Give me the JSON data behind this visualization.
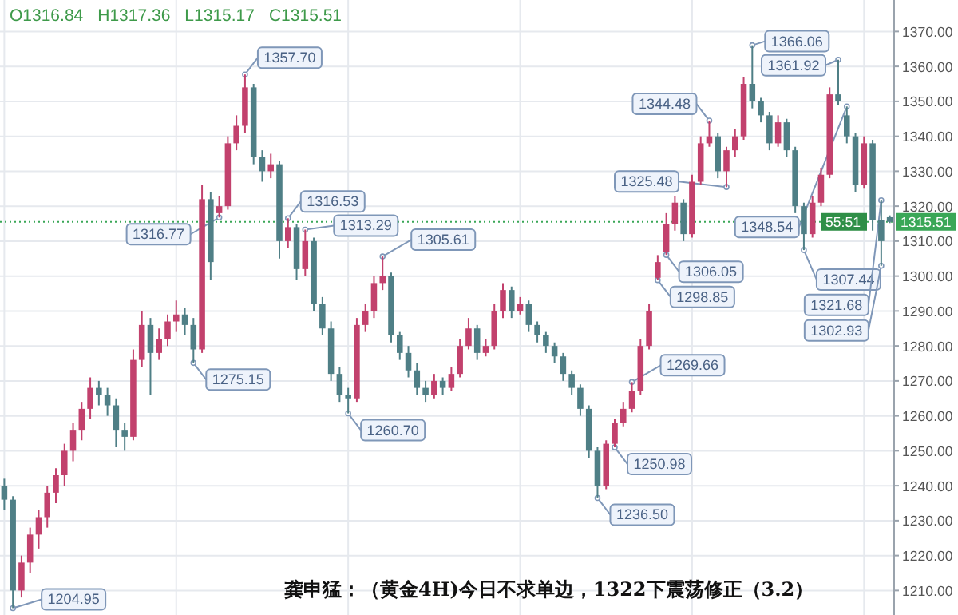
{
  "chart_data": {
    "type": "candlestick",
    "title": "龚申猛：（黄金4H)今日不求单边，1322下震荡修正（3.2）",
    "categories": [
      null,
      null,
      null,
      null,
      null,
      null,
      null,
      null,
      null,
      null,
      null,
      null,
      null,
      null,
      null,
      null,
      null,
      null,
      null,
      null,
      null,
      null,
      null,
      null,
      null,
      null,
      null,
      null,
      null,
      null,
      null,
      null,
      null,
      null,
      null,
      null,
      null,
      null,
      null,
      null,
      null,
      null,
      null,
      null,
      null,
      null,
      null,
      null,
      null,
      null,
      null,
      null,
      null,
      null,
      null,
      null,
      null,
      null,
      null,
      null,
      null,
      null,
      null,
      null,
      null,
      null,
      null,
      null,
      null,
      null,
      null,
      null,
      null,
      null,
      null,
      null,
      null,
      null,
      null,
      null,
      null,
      null,
      null,
      null,
      null,
      null,
      null,
      null,
      null,
      null,
      null,
      null,
      null,
      null,
      null,
      null,
      null,
      null,
      null,
      null,
      null,
      null,
      null,
      null
    ],
    "ohlc": [
      [
        1240,
        1242,
        1233,
        1236
      ],
      [
        1236,
        1237,
        1204.95,
        1210
      ],
      [
        1210,
        1220,
        1208,
        1218
      ],
      [
        1218,
        1228,
        1215,
        1226
      ],
      [
        1226,
        1233,
        1222,
        1231
      ],
      [
        1231,
        1240,
        1228,
        1238
      ],
      [
        1238,
        1245,
        1235,
        1243
      ],
      [
        1243,
        1252,
        1240,
        1250
      ],
      [
        1250,
        1258,
        1247,
        1256
      ],
      [
        1256,
        1264,
        1253,
        1262
      ],
      [
        1262,
        1271,
        1259,
        1268
      ],
      [
        1268,
        1270,
        1263,
        1266
      ],
      [
        1266,
        1268,
        1260,
        1263
      ],
      [
        1263,
        1265,
        1251,
        1256
      ],
      [
        1256,
        1258,
        1250,
        1254
      ],
      [
        1254,
        1279,
        1253,
        1276
      ],
      [
        1276,
        1290,
        1274,
        1286
      ],
      [
        1286,
        1288,
        1266,
        1278
      ],
      [
        1278,
        1285,
        1276,
        1282
      ],
      [
        1282,
        1289,
        1280,
        1287
      ],
      [
        1287,
        1293,
        1284,
        1289
      ],
      [
        1289,
        1291,
        1283,
        1286
      ],
      [
        1286,
        1288,
        1275.15,
        1279
      ],
      [
        1279,
        1326,
        1278,
        1322
      ],
      [
        1322,
        1324,
        1299,
        1304
      ],
      [
        1318,
        1323,
        1316.77,
        1320
      ],
      [
        1320,
        1340,
        1319,
        1338
      ],
      [
        1338,
        1346,
        1336,
        1343
      ],
      [
        1343,
        1357.7,
        1341,
        1354
      ],
      [
        1354,
        1355,
        1332,
        1334
      ],
      [
        1334,
        1336,
        1327,
        1330
      ],
      [
        1330,
        1335,
        1328,
        1332
      ],
      [
        1332,
        1333,
        1305,
        1310
      ],
      [
        1310,
        1316.53,
        1308,
        1314
      ],
      [
        1314,
        1315,
        1299,
        1302
      ],
      [
        1302,
        1313.29,
        1300,
        1310
      ],
      [
        1310,
        1311,
        1290,
        1292
      ],
      [
        1292,
        1294,
        1283,
        1285
      ],
      [
        1285,
        1287,
        1270,
        1272
      ],
      [
        1272,
        1274,
        1264,
        1266
      ],
      [
        1266,
        1268,
        1260.7,
        1265
      ],
      [
        1265,
        1288,
        1264,
        1286
      ],
      [
        1286,
        1292,
        1284,
        1290
      ],
      [
        1290,
        1300,
        1288,
        1298
      ],
      [
        1298,
        1305.61,
        1296,
        1300
      ],
      [
        1300,
        1301,
        1281,
        1283
      ],
      [
        1283,
        1284,
        1276,
        1278
      ],
      [
        1278,
        1280,
        1271,
        1273
      ],
      [
        1273,
        1275,
        1266,
        1268
      ],
      [
        1268,
        1270,
        1264,
        1266
      ],
      [
        1266,
        1272,
        1265,
        1270
      ],
      [
        1270,
        1271,
        1266,
        1268
      ],
      [
        1268,
        1274,
        1267,
        1272
      ],
      [
        1272,
        1282,
        1271,
        1280
      ],
      [
        1280,
        1288,
        1279,
        1285
      ],
      [
        1285,
        1286,
        1276,
        1278
      ],
      [
        1278,
        1282,
        1277,
        1280
      ],
      [
        1280,
        1292,
        1279,
        1290
      ],
      [
        1290,
        1298,
        1288,
        1296
      ],
      [
        1296,
        1297,
        1288,
        1290
      ],
      [
        1290,
        1294,
        1289,
        1292
      ],
      [
        1292,
        1293,
        1284,
        1286
      ],
      [
        1286,
        1287,
        1281,
        1283
      ],
      [
        1283,
        1284,
        1278,
        1280
      ],
      [
        1280,
        1281,
        1275,
        1277
      ],
      [
        1277,
        1278,
        1270,
        1272
      ],
      [
        1272,
        1273,
        1266,
        1268
      ],
      [
        1268,
        1269,
        1260,
        1262
      ],
      [
        1262,
        1263,
        1248,
        1250
      ],
      [
        1250,
        1251,
        1236.5,
        1240
      ],
      [
        1240,
        1253,
        1239,
        1252
      ],
      [
        1252,
        1259,
        1250.98,
        1258
      ],
      [
        1258,
        1264,
        1257,
        1262
      ],
      [
        1262,
        1269.66,
        1261,
        1267
      ],
      [
        1267,
        1282,
        1266,
        1280
      ],
      [
        1280,
        1292,
        1279,
        1290
      ],
      [
        1299.5,
        1306,
        1298.85,
        1304
      ],
      [
        1307,
        1318,
        1306.05,
        1315
      ],
      [
        1315,
        1323,
        1313,
        1321
      ],
      [
        1321,
        1322,
        1310,
        1312
      ],
      [
        1312,
        1329,
        1311,
        1327
      ],
      [
        1327,
        1340,
        1326,
        1338
      ],
      [
        1338,
        1344.48,
        1337,
        1340
      ],
      [
        1340,
        1341,
        1328,
        1330
      ],
      [
        1330,
        1337,
        1325.48,
        1336
      ],
      [
        1336,
        1342,
        1334,
        1340
      ],
      [
        1340,
        1357,
        1339,
        1355
      ],
      [
        1355,
        1366.06,
        1348,
        1350
      ],
      [
        1350,
        1351,
        1344,
        1346
      ],
      [
        1346,
        1347,
        1336,
        1338
      ],
      [
        1338,
        1346,
        1337,
        1344
      ],
      [
        1344,
        1345,
        1334,
        1336
      ],
      [
        1336,
        1337,
        1318,
        1320
      ],
      [
        1320,
        1321,
        1307.44,
        1312
      ],
      [
        1312,
        1323,
        1311,
        1321
      ],
      [
        1321,
        1331,
        1320,
        1329
      ],
      [
        1329,
        1354,
        1328,
        1352
      ],
      [
        1352,
        1361.92,
        1349,
        1350
      ],
      [
        1346,
        1348.54,
        1338,
        1340
      ],
      [
        1340,
        1341,
        1324,
        1326
      ],
      [
        1326,
        1340,
        1325,
        1338
      ],
      [
        1338,
        1339,
        1313,
        1316
      ],
      [
        1316,
        1321.68,
        1302.93,
        1310
      ],
      [
        1316.84,
        1317.36,
        1315.17,
        1315.51
      ]
    ],
    "ylim": [
      1203,
      1379
    ],
    "yticks": [
      {
        "value": 1210,
        "label": "1210.00"
      },
      {
        "value": 1220,
        "label": "1220.00"
      },
      {
        "value": 1230,
        "label": "1230.00"
      },
      {
        "value": 1240,
        "label": "1240.00"
      },
      {
        "value": 1250,
        "label": "1250.00"
      },
      {
        "value": 1260,
        "label": "1260.00"
      },
      {
        "value": 1270,
        "label": "1270.00"
      },
      {
        "value": 1280,
        "label": "1280.00"
      },
      {
        "value": 1290,
        "label": "1290.00"
      },
      {
        "value": 1300,
        "label": "1300.00"
      },
      {
        "value": 1310,
        "label": "1310.00"
      },
      {
        "value": 1320,
        "label": "1320.00"
      },
      {
        "value": 1330,
        "label": "1330.00"
      },
      {
        "value": 1340,
        "label": "1340.00"
      },
      {
        "value": 1350,
        "label": "1350.00"
      },
      {
        "value": 1360,
        "label": "1360.00"
      },
      {
        "value": 1370,
        "label": "1370.00"
      }
    ],
    "grid": true,
    "ref_lines": [
      {
        "axis": "y",
        "value": 1315.51,
        "label": "1315.51",
        "color": "#3aa757",
        "line_style": "dotted"
      }
    ],
    "annotations": [
      "O1316.84",
      "H1317.36",
      "L1315.17",
      "C1315.51",
      "55:51",
      "1204.95",
      "1275.15",
      "1316.77",
      "1357.70",
      "1316.53",
      "1313.29",
      "1260.70",
      "1305.61",
      "1236.50",
      "1250.98",
      "1269.66",
      "1298.85",
      "1306.05",
      "1344.48",
      "1325.48",
      "1366.06",
      "1307.44",
      "1361.92",
      "1348.54",
      "1321.68",
      "1302.93"
    ]
  }
}
